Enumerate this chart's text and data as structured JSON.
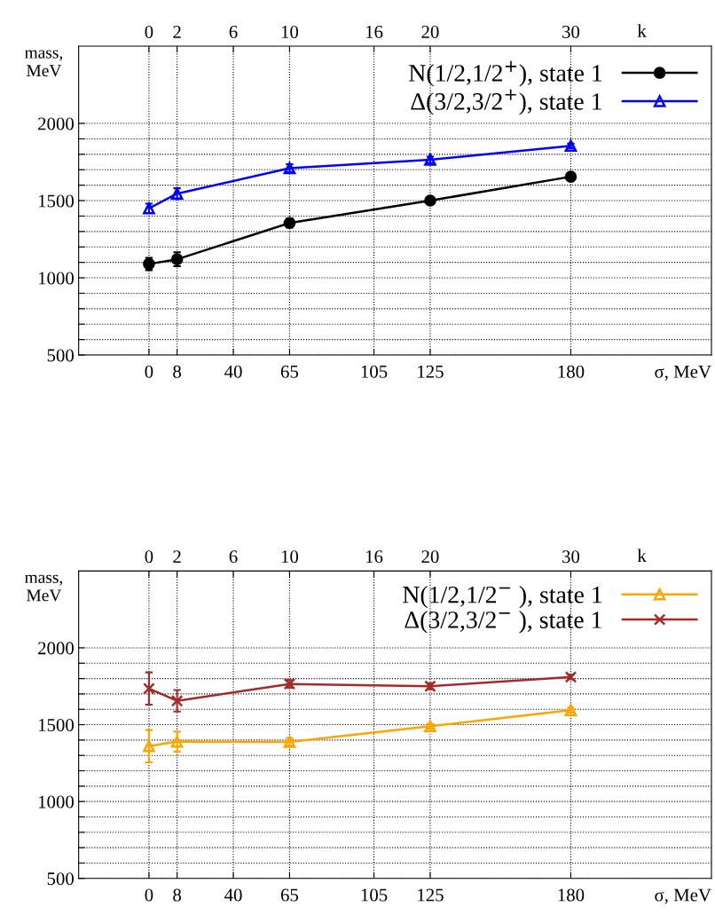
{
  "chart_data": [
    {
      "type": "line",
      "x": [
        0,
        2,
        10,
        20,
        30
      ],
      "xlabel": "k",
      "ylabel": "mass,\nMeV",
      "annotations": [
        "0",
        "8",
        "40",
        "65",
        "105",
        "125",
        "180",
        "σ, MeV"
      ],
      "series": [
        {
          "name": "N(1/2,1/2$^{+}$), state 1",
          "color": "#000000",
          "marker": "circle",
          "values": [
            1090,
            1120,
            1355,
            1500,
            1655
          ],
          "errors": [
            40,
            45,
            30,
            15,
            15
          ]
        },
        {
          "name": "Δ(3/2,3/2$^{+}$), state 1",
          "color": "#0000ff",
          "marker": "triangle",
          "values": [
            1450,
            1545,
            1710,
            1765,
            1855
          ],
          "errors": [
            30,
            35,
            25,
            20,
            15
          ]
        }
      ],
      "xlim": [
        -5,
        40
      ],
      "xticks": [
        0,
        2,
        6,
        10,
        16,
        20,
        30
      ],
      "ylim": [
        500,
        2500
      ],
      "yticks": [
        500,
        {
          "value": 600,
          "label": null
        },
        {
          "value": 700,
          "label": null
        },
        {
          "value": 800,
          "label": null
        },
        {
          "value": 900,
          "label": null
        },
        1000,
        {
          "value": 1100,
          "label": null
        },
        {
          "value": 1200,
          "label": null
        },
        {
          "value": 1300,
          "label": null
        },
        {
          "value": 1400,
          "label": null
        },
        1500,
        {
          "value": 1600,
          "label": null
        },
        {
          "value": 1700,
          "label": null
        },
        {
          "value": 1800,
          "label": null
        },
        {
          "value": 1900,
          "label": null
        },
        2000
      ],
      "grid": true,
      "legend": "top right",
      "line_style": "solid"
    },
    {
      "type": "line",
      "x": [
        0,
        2,
        10,
        20,
        30
      ],
      "xlabel": "k",
      "ylabel": "mass,\nMeV",
      "annotations": [
        "0",
        "8",
        "40",
        "65",
        "105",
        "125",
        "180",
        "σ, MeV"
      ],
      "series": [
        {
          "name": "N(1/2,1/2$^{−}$ ), state 1",
          "color": "#ffa500",
          "marker": "triangle",
          "values": [
            1360,
            1390,
            1388,
            1490,
            1595
          ],
          "errors": [
            105,
            65,
            25,
            15,
            15
          ]
        },
        {
          "name": "Δ(3/2,3/2$^{−}$ ), state 1",
          "color": "#a52a2a",
          "marker": "cross",
          "values": [
            1735,
            1655,
            1765,
            1750,
            1810
          ],
          "errors": [
            105,
            70,
            25,
            20,
            15
          ]
        }
      ],
      "xlim": [
        -5,
        40
      ],
      "xticks": [
        0,
        2,
        6,
        10,
        16,
        20,
        30
      ],
      "ylim": [
        500,
        2500
      ],
      "yticks": [
        500,
        {
          "value": 600,
          "label": null
        },
        {
          "value": 700,
          "label": null
        },
        {
          "value": 800,
          "label": null
        },
        {
          "value": 900,
          "label": null
        },
        1000,
        {
          "value": 1100,
          "label": null
        },
        {
          "value": 1200,
          "label": null
        },
        {
          "value": 1300,
          "label": null
        },
        {
          "value": 1400,
          "label": null
        },
        1500,
        {
          "value": 1600,
          "label": null
        },
        {
          "value": 1700,
          "label": null
        },
        {
          "value": 1800,
          "label": null
        },
        {
          "value": 1900,
          "label": null
        },
        2000
      ],
      "grid": true,
      "legend": "top right",
      "line_style": "solid"
    }
  ]
}
